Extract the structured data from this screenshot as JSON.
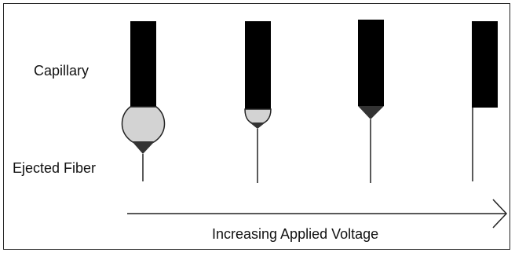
{
  "labels": {
    "capillary": "Capillary",
    "ejected_fiber": "Ejected Fiber",
    "increasing_voltage": "Increasing Applied Voltage"
  },
  "stages": [
    {
      "name": "stage-1",
      "droplet": "large"
    },
    {
      "name": "stage-2",
      "droplet": "small"
    },
    {
      "name": "stage-3",
      "droplet": "cone"
    },
    {
      "name": "stage-4",
      "droplet": "none"
    }
  ],
  "colors": {
    "capillary": "#000000",
    "droplet_fill": "#d3d3d3",
    "cone": "#333333",
    "line": "#222222"
  }
}
